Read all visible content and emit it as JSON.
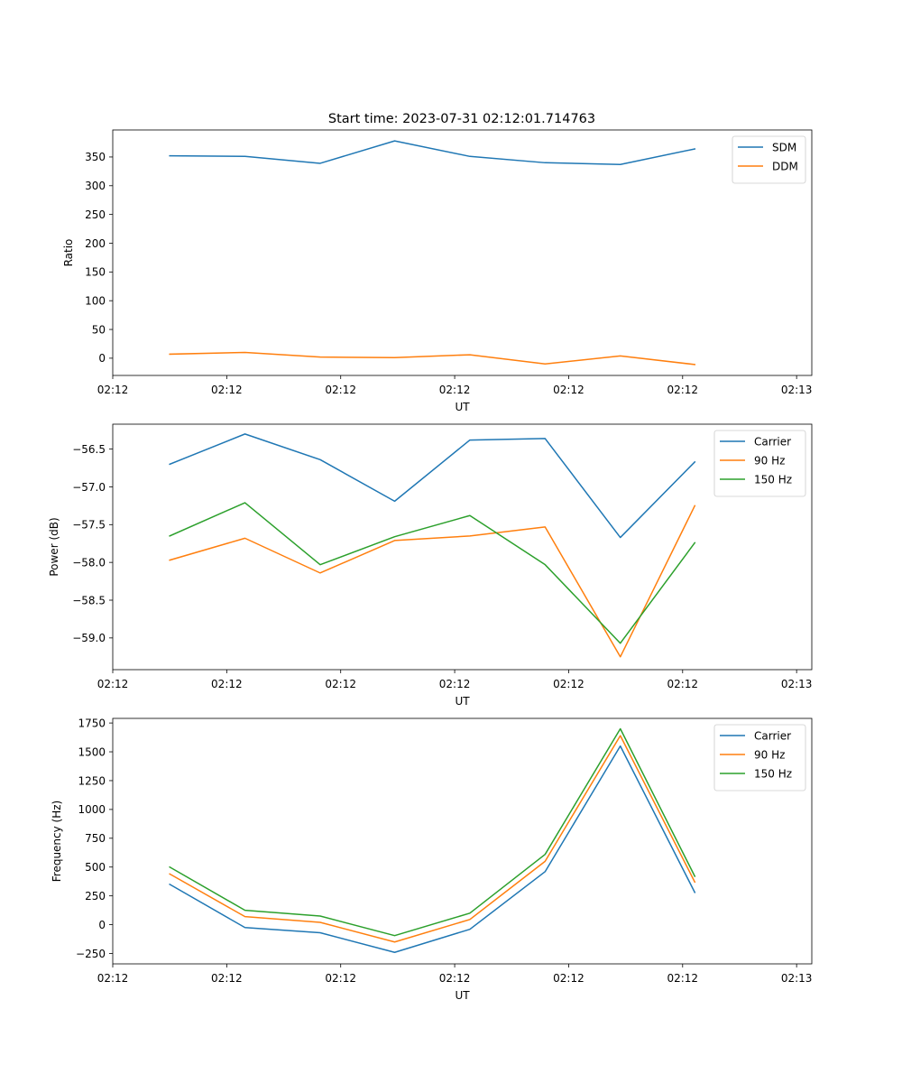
{
  "figure": {
    "title": "Start time: 2023-07-31 02:12:01.714763"
  },
  "colors": {
    "blue": "#1f77b4",
    "orange": "#ff7f0e",
    "green": "#2ca02c"
  },
  "chart_data": [
    {
      "type": "line",
      "xlabel": "UT",
      "ylabel": "Ratio",
      "xlim": [
        0,
        9.2
      ],
      "ylim": [
        -30,
        397
      ],
      "x_ticks": [
        0.0,
        1.5,
        3.0,
        4.5,
        6.0,
        7.5,
        9.0
      ],
      "x_tick_labels": [
        "02:12",
        "02:12",
        "02:12",
        "02:12",
        "02:12",
        "02:12",
        "02:13"
      ],
      "y_ticks": [
        0,
        50,
        100,
        150,
        200,
        250,
        300,
        350
      ],
      "y_tick_labels": [
        "0",
        "50",
        "100",
        "150",
        "200",
        "250",
        "300",
        "350"
      ],
      "x": [
        0.75,
        1.74,
        2.73,
        3.71,
        4.7,
        5.69,
        6.68,
        7.66
      ],
      "series": [
        {
          "name": "SDM",
          "color": "#1f77b4",
          "values": [
            352,
            351,
            339,
            378,
            351,
            340,
            337,
            364
          ]
        },
        {
          "name": "DDM",
          "color": "#ff7f0e",
          "values": [
            7,
            10,
            2,
            1,
            6,
            -10,
            4,
            -11
          ]
        }
      ],
      "legend": "top-right"
    },
    {
      "type": "line",
      "xlabel": "UT",
      "ylabel": "Power (dB)",
      "xlim": [
        0,
        9.2
      ],
      "ylim": [
        -59.42,
        -56.17
      ],
      "x_ticks": [
        0.0,
        1.5,
        3.0,
        4.5,
        6.0,
        7.5,
        9.0
      ],
      "x_tick_labels": [
        "02:12",
        "02:12",
        "02:12",
        "02:12",
        "02:12",
        "02:12",
        "02:13"
      ],
      "y_ticks": [
        -59.0,
        -58.5,
        -58.0,
        -57.5,
        -57.0,
        -56.5
      ],
      "y_tick_labels": [
        "−59.0",
        "−58.5",
        "−58.0",
        "−57.5",
        "−57.0",
        "−56.5"
      ],
      "x": [
        0.75,
        1.74,
        2.73,
        3.71,
        4.7,
        5.69,
        6.68,
        7.66
      ],
      "series": [
        {
          "name": "Carrier",
          "color": "#1f77b4",
          "values": [
            -56.7,
            -56.3,
            -56.64,
            -57.19,
            -56.38,
            -56.36,
            -57.67,
            -56.67
          ]
        },
        {
          "name": "90 Hz",
          "color": "#ff7f0e",
          "values": [
            -57.97,
            -57.68,
            -58.14,
            -57.71,
            -57.65,
            -57.53,
            -59.25,
            -57.25
          ]
        },
        {
          "name": "150 Hz",
          "color": "#2ca02c",
          "values": [
            -57.65,
            -57.21,
            -58.03,
            -57.66,
            -57.38,
            -58.03,
            -59.07,
            -57.74
          ]
        }
      ],
      "legend": "top-right"
    },
    {
      "type": "line",
      "xlabel": "UT",
      "ylabel": "Frequency (Hz)",
      "xlim": [
        0,
        9.2
      ],
      "ylim": [
        -340,
        1790
      ],
      "x_ticks": [
        0.0,
        1.5,
        3.0,
        4.5,
        6.0,
        7.5,
        9.0
      ],
      "x_tick_labels": [
        "02:12",
        "02:12",
        "02:12",
        "02:12",
        "02:12",
        "02:12",
        "02:13"
      ],
      "y_ticks": [
        -250,
        0,
        250,
        500,
        750,
        1000,
        1250,
        1500,
        1750
      ],
      "y_tick_labels": [
        "−250",
        "0",
        "250",
        "500",
        "750",
        "1000",
        "1250",
        "1500",
        "1750"
      ],
      "x": [
        0.75,
        1.74,
        2.73,
        3.71,
        4.7,
        5.69,
        6.68,
        7.66
      ],
      "series": [
        {
          "name": "Carrier",
          "color": "#1f77b4",
          "values": [
            350,
            -25,
            -70,
            -240,
            -40,
            460,
            1550,
            280
          ]
        },
        {
          "name": "90 Hz",
          "color": "#ff7f0e",
          "values": [
            440,
            70,
            20,
            -150,
            45,
            550,
            1640,
            370
          ]
        },
        {
          "name": "150 Hz",
          "color": "#2ca02c",
          "values": [
            500,
            125,
            75,
            -95,
            100,
            610,
            1700,
            420
          ]
        }
      ],
      "legend": "top-right"
    }
  ]
}
